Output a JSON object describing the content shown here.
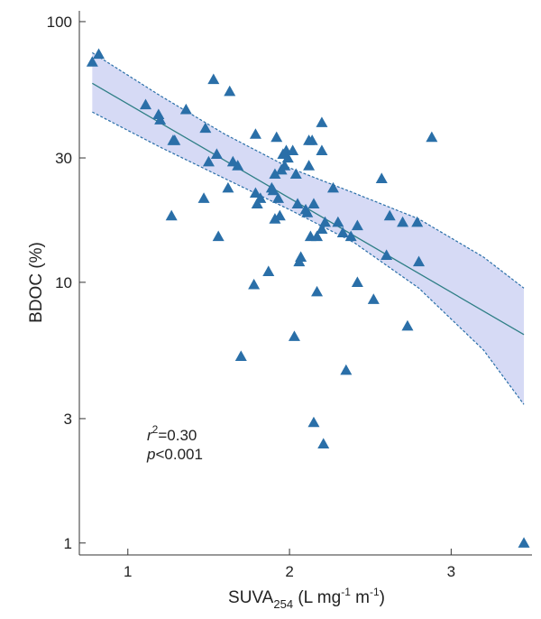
{
  "chart_data": {
    "type": "scatter",
    "title": "",
    "xlabel": {
      "main": "SUVA",
      "sub": "254",
      "unit_prefix": " (L mg",
      "exp1": "-1",
      "unit_mid": " m",
      "exp2": "-1",
      "unit_suffix": ")"
    },
    "ylabel": "BDOC (%)",
    "xlim": [
      0.7,
      3.5
    ],
    "ylim": [
      0.9,
      110
    ],
    "yscale": "log",
    "xticks": [
      1,
      2,
      3
    ],
    "xtick_labels": [
      "1",
      "2",
      "3"
    ],
    "yticks": [
      1,
      3,
      10,
      30,
      100
    ],
    "ytick_labels": [
      "1",
      "3",
      "10",
      "30",
      "100"
    ],
    "grid": false,
    "marker": "triangle",
    "colors": {
      "points": "#2a6fa8",
      "regression_line": "#2f7f86",
      "confidence_band_fill": "#c8cdf2",
      "confidence_band_edge": "#2a6fa8"
    },
    "annotations": {
      "r2_symbol": "r",
      "r2_exp": "2",
      "r2_value": "=0.30",
      "p_symbol": "p",
      "p_value": "<0.001"
    },
    "regression": {
      "x": [
        0.78,
        3.45
      ],
      "y": [
        58,
        6.3
      ]
    },
    "confidence_band": {
      "x": [
        0.78,
        1.2,
        1.6,
        2.0,
        2.4,
        2.8,
        3.2,
        3.45
      ],
      "upper": [
        76,
        52,
        37,
        27.5,
        22,
        17.5,
        12.5,
        9.5
      ],
      "lower": [
        45,
        33,
        25,
        19,
        14.2,
        9.5,
        5.5,
        3.4
      ]
    },
    "points": [
      {
        "x": 0.78,
        "y": 70
      },
      {
        "x": 0.82,
        "y": 75
      },
      {
        "x": 1.11,
        "y": 48
      },
      {
        "x": 1.19,
        "y": 44
      },
      {
        "x": 1.2,
        "y": 42
      },
      {
        "x": 1.28,
        "y": 35
      },
      {
        "x": 1.29,
        "y": 35
      },
      {
        "x": 1.27,
        "y": 18
      },
      {
        "x": 1.36,
        "y": 46
      },
      {
        "x": 1.47,
        "y": 21
      },
      {
        "x": 1.48,
        "y": 39
      },
      {
        "x": 1.5,
        "y": 29
      },
      {
        "x": 1.53,
        "y": 60
      },
      {
        "x": 1.55,
        "y": 31
      },
      {
        "x": 1.56,
        "y": 15
      },
      {
        "x": 1.63,
        "y": 54
      },
      {
        "x": 1.62,
        "y": 23
      },
      {
        "x": 1.65,
        "y": 29
      },
      {
        "x": 1.68,
        "y": 28
      },
      {
        "x": 1.7,
        "y": 5.2
      },
      {
        "x": 1.78,
        "y": 9.8
      },
      {
        "x": 1.79,
        "y": 22
      },
      {
        "x": 1.79,
        "y": 37
      },
      {
        "x": 1.8,
        "y": 20
      },
      {
        "x": 1.82,
        "y": 21
      },
      {
        "x": 1.87,
        "y": 11
      },
      {
        "x": 1.89,
        "y": 23
      },
      {
        "x": 1.9,
        "y": 22.5
      },
      {
        "x": 1.91,
        "y": 26
      },
      {
        "x": 1.91,
        "y": 17.5
      },
      {
        "x": 1.92,
        "y": 36
      },
      {
        "x": 1.93,
        "y": 21
      },
      {
        "x": 1.94,
        "y": 18
      },
      {
        "x": 1.95,
        "y": 27
      },
      {
        "x": 1.96,
        "y": 31
      },
      {
        "x": 1.97,
        "y": 28
      },
      {
        "x": 1.98,
        "y": 32
      },
      {
        "x": 1.99,
        "y": 30
      },
      {
        "x": 2.02,
        "y": 32
      },
      {
        "x": 2.03,
        "y": 6.2
      },
      {
        "x": 2.04,
        "y": 26
      },
      {
        "x": 2.05,
        "y": 20
      },
      {
        "x": 2.06,
        "y": 12
      },
      {
        "x": 2.07,
        "y": 12.5
      },
      {
        "x": 2.1,
        "y": 19
      },
      {
        "x": 2.11,
        "y": 18.5
      },
      {
        "x": 2.12,
        "y": 35
      },
      {
        "x": 2.12,
        "y": 28
      },
      {
        "x": 2.13,
        "y": 15
      },
      {
        "x": 2.14,
        "y": 35
      },
      {
        "x": 2.15,
        "y": 20
      },
      {
        "x": 2.15,
        "y": 2.9
      },
      {
        "x": 2.17,
        "y": 15
      },
      {
        "x": 2.17,
        "y": 9.2
      },
      {
        "x": 2.2,
        "y": 41
      },
      {
        "x": 2.2,
        "y": 32
      },
      {
        "x": 2.2,
        "y": 16
      },
      {
        "x": 2.21,
        "y": 2.4
      },
      {
        "x": 2.22,
        "y": 17
      },
      {
        "x": 2.27,
        "y": 23
      },
      {
        "x": 2.3,
        "y": 17
      },
      {
        "x": 2.33,
        "y": 15.5
      },
      {
        "x": 2.35,
        "y": 4.6
      },
      {
        "x": 2.38,
        "y": 15
      },
      {
        "x": 2.42,
        "y": 16.5
      },
      {
        "x": 2.42,
        "y": 10
      },
      {
        "x": 2.52,
        "y": 8.6
      },
      {
        "x": 2.57,
        "y": 25
      },
      {
        "x": 2.6,
        "y": 12.7
      },
      {
        "x": 2.62,
        "y": 18
      },
      {
        "x": 2.7,
        "y": 17
      },
      {
        "x": 2.73,
        "y": 6.8
      },
      {
        "x": 2.79,
        "y": 17
      },
      {
        "x": 2.8,
        "y": 12
      },
      {
        "x": 2.88,
        "y": 36
      },
      {
        "x": 3.45,
        "y": 1.0
      }
    ]
  }
}
